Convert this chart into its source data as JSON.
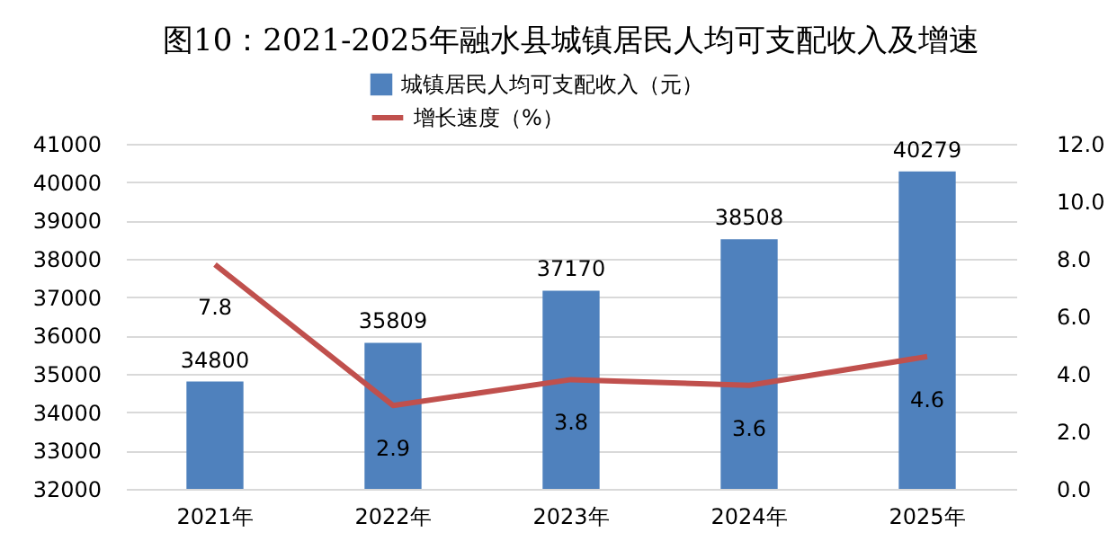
{
  "chart_data": {
    "type": "bar",
    "title": "图10：2021-2025年融水县城镇居民人均可支配收入及增速",
    "categories": [
      "2021年",
      "2022年",
      "2023年",
      "2024年",
      "2025年"
    ],
    "series": [
      {
        "name": "城镇居民人均可支配收入（元）",
        "color": "#4f81bd",
        "values": [
          34800,
          35809,
          37170,
          38508,
          40279
        ]
      },
      {
        "name": "增长速度（%）",
        "type": "line",
        "axis": "y2",
        "color": "#c0504d",
        "values": [
          7.8,
          2.9,
          3.8,
          3.6,
          4.6
        ]
      }
    ],
    "ylim": [
      32000,
      41000
    ],
    "yticks": [
      32000,
      33000,
      34000,
      35000,
      36000,
      37000,
      38000,
      39000,
      40000,
      41000
    ],
    "y2lim": [
      0,
      12
    ],
    "y2ticks": [
      {
        "value": 0,
        "label": "0.0"
      },
      {
        "value": 2,
        "label": "2.0"
      },
      {
        "value": 4,
        "label": "4.0"
      },
      {
        "value": 6,
        "label": "6.0"
      },
      {
        "value": 8,
        "label": "8.0"
      },
      {
        "value": 10,
        "label": "10.0"
      },
      {
        "value": 12,
        "label": "12.0"
      }
    ],
    "grid": "y",
    "legend": "top",
    "data_labels": true
  }
}
